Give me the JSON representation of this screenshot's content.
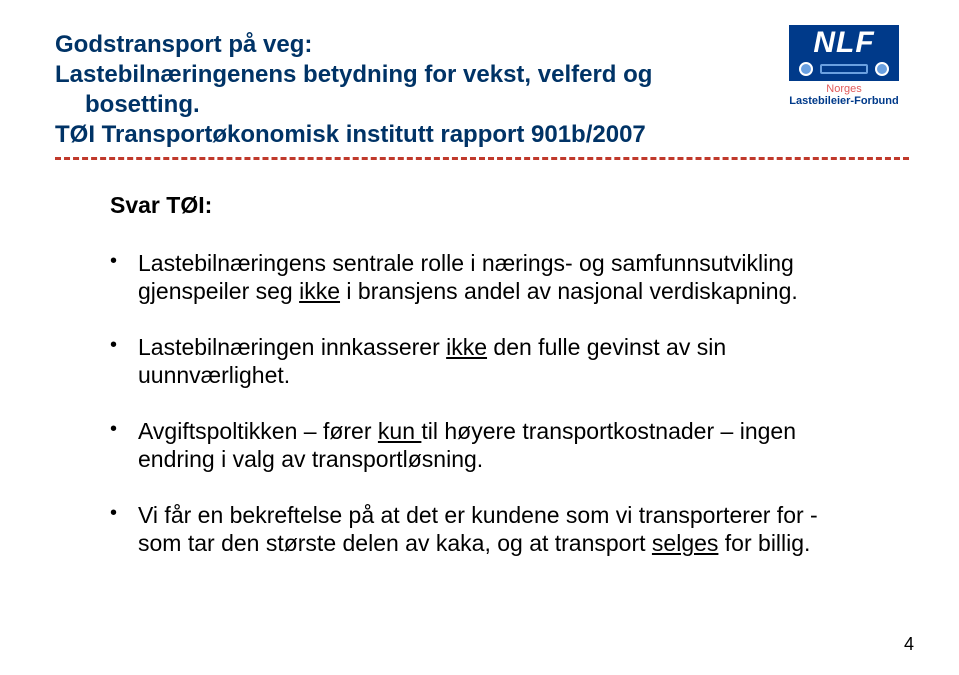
{
  "title": {
    "line1": "Godstransport på veg:",
    "line2": "Lastebilnæringenens betydning for vekst, velferd og",
    "line3": "bosetting.",
    "line4": "TØI Transportøkonomisk institutt rapport 901b/2007"
  },
  "logo": {
    "abbrev": "NLF",
    "norges": "Norges",
    "sub": "Lastebileier-Forbund"
  },
  "svar_label": "Svar TØI:",
  "bullets": [
    {
      "pre": "Lastebilnæringens sentrale rolle i nærings- og samfunnsutvikling gjenspeiler seg ",
      "u1": "ikke",
      "post": " i bransjens andel av nasjonal verdiskapning."
    },
    {
      "pre": "Lastebilnæringen innkasserer ",
      "u1": "ikke",
      "post": " den fulle gevinst av sin uunnværlighet."
    },
    {
      "pre": "Avgiftspoltikken – fører ",
      "u1": "kun ",
      "post": "til høyere transportkostnader – ingen endring i valg av transportløsning."
    },
    {
      "pre": "Vi får en bekreftelse på at det er kundene som vi transporterer for - som tar den største delen av kaka, og at transport ",
      "u1": "selges",
      "post": " for billig."
    }
  ],
  "page_number": "4",
  "colors": {
    "title": "#003366",
    "dash": "#c0392b",
    "logo_bg": "#003a8a",
    "logo_accent": "#6aa0e0",
    "logo_red": "#e05a5a"
  }
}
